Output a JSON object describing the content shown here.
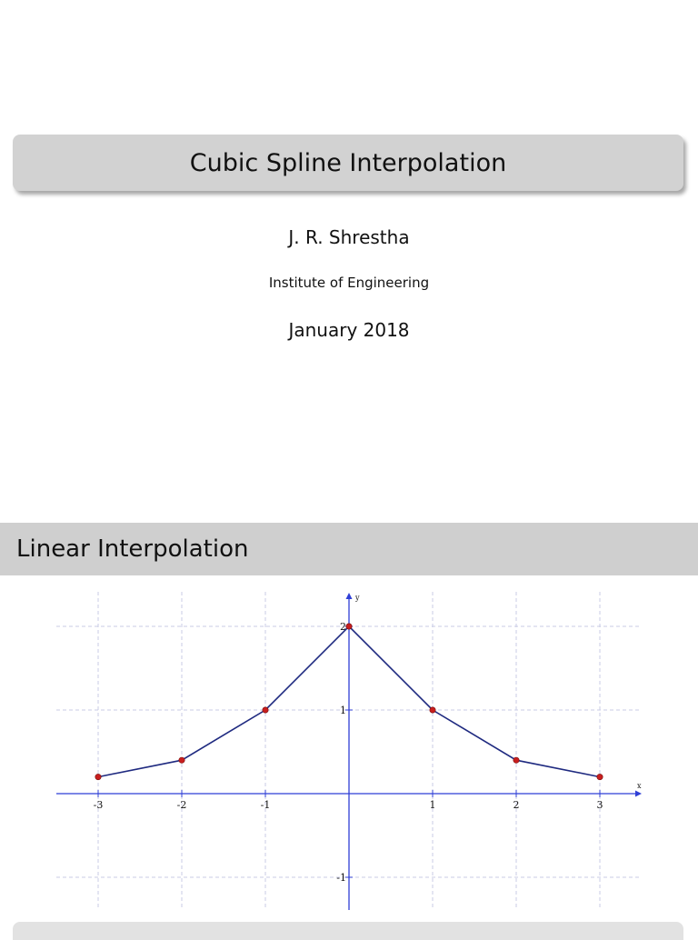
{
  "title_slide": {
    "title": "Cubic Spline Interpolation",
    "author": "J. R. Shrestha",
    "institute": "Institute of Engineering",
    "date": "January 2018"
  },
  "section": {
    "heading": "Linear Interpolation"
  },
  "colors": {
    "title_box": "#d2d2d2",
    "section_bar": "#cfcfcf",
    "axis": "#2f3fd6",
    "line": "#1f2a80",
    "point": "#c81e1e",
    "grid": "#c9cbe6"
  },
  "chart_data": {
    "type": "line",
    "title": "",
    "xlabel": "x",
    "ylabel": "y",
    "xlim": [
      -3.3,
      3.5
    ],
    "ylim": [
      -1.4,
      2.4
    ],
    "x_ticks": [
      -3,
      -2,
      -1,
      1,
      2,
      3
    ],
    "x_tick_labels": [
      "-3",
      "-2",
      "-1",
      "1",
      "2",
      "3"
    ],
    "y_ticks": [
      -1,
      1,
      2
    ],
    "y_tick_labels": [
      "-1",
      "1",
      "2"
    ],
    "grid": true,
    "series": [
      {
        "x": [
          -3,
          -2,
          -1,
          0,
          1,
          2,
          3
        ],
        "y": [
          0.2,
          0.4,
          1.0,
          2.0,
          1.0,
          0.4,
          0.2
        ]
      }
    ]
  }
}
